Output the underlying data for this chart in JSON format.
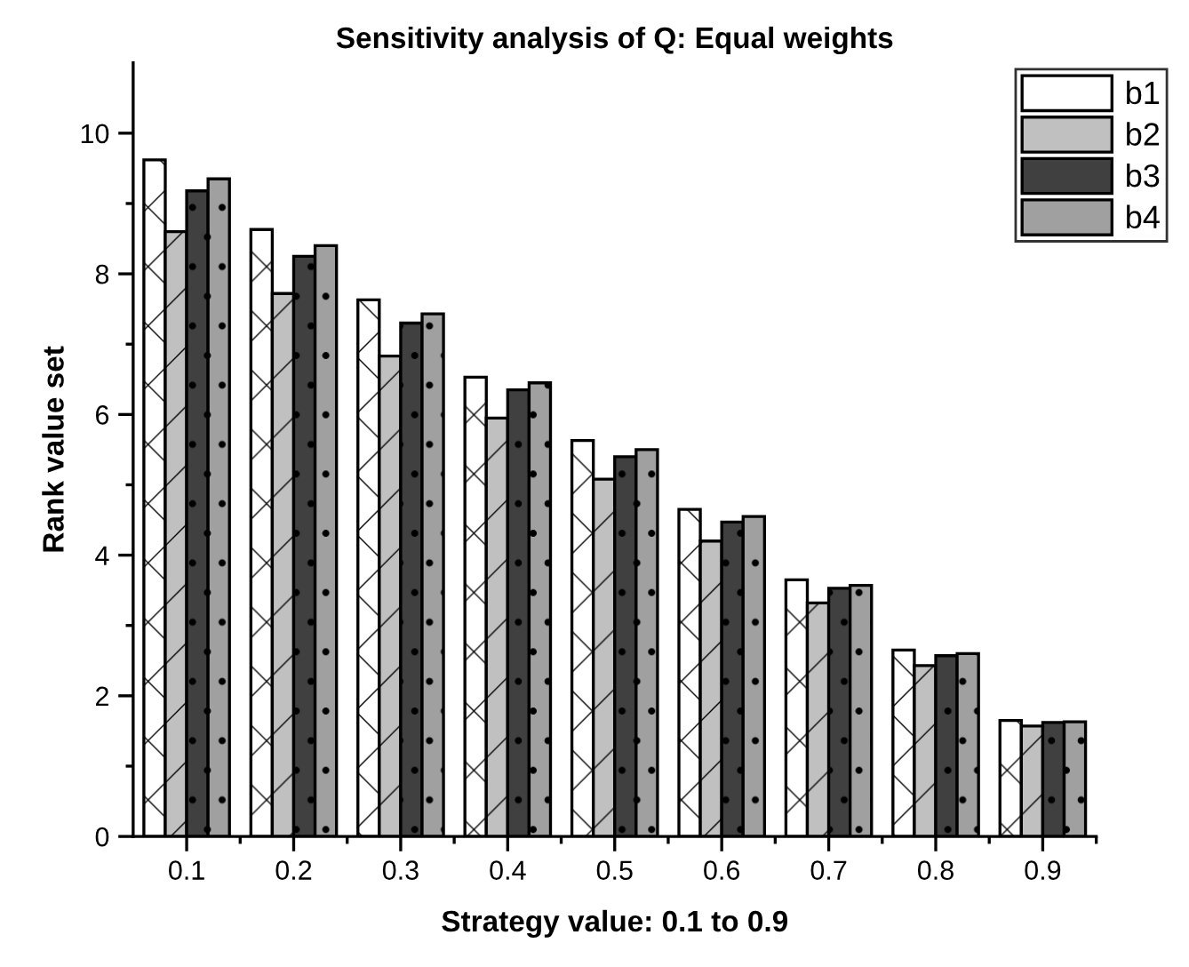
{
  "chart_data": {
    "type": "bar",
    "title": "Sensitivity analysis of Q: Equal weights",
    "xlabel": "Strategy value: 0.1 to 0.9",
    "ylabel": "Rank value set",
    "categories": [
      "0.1",
      "0.2",
      "0.3",
      "0.4",
      "0.5",
      "0.6",
      "0.7",
      "0.8",
      "0.9"
    ],
    "series": [
      {
        "name": "b1",
        "color": "#ffffff",
        "values": [
          9.62,
          8.63,
          7.63,
          6.53,
          5.63,
          4.65,
          3.65,
          2.65,
          1.65
        ]
      },
      {
        "name": "b2",
        "color": "#c0c0c0",
        "values": [
          8.6,
          7.72,
          6.83,
          5.95,
          5.08,
          4.2,
          3.32,
          2.43,
          1.57
        ]
      },
      {
        "name": "b3",
        "color": "#404040",
        "values": [
          9.18,
          8.25,
          7.3,
          6.35,
          5.4,
          4.47,
          3.53,
          2.57,
          1.62
        ]
      },
      {
        "name": "b4",
        "color": "#a0a0a0",
        "values": [
          9.35,
          8.4,
          7.43,
          6.45,
          5.5,
          4.55,
          3.57,
          2.6,
          1.63
        ]
      }
    ],
    "ylim": [
      0,
      11
    ],
    "yticks": [
      0,
      {
        "value": 1,
        "label": null
      },
      2,
      {
        "value": 3,
        "label": null
      },
      4,
      {
        "value": 5,
        "label": null
      },
      6,
      {
        "value": 7,
        "label": null
      },
      8,
      {
        "value": 9,
        "label": null
      },
      10
    ],
    "grid": false,
    "legend": "top right"
  }
}
